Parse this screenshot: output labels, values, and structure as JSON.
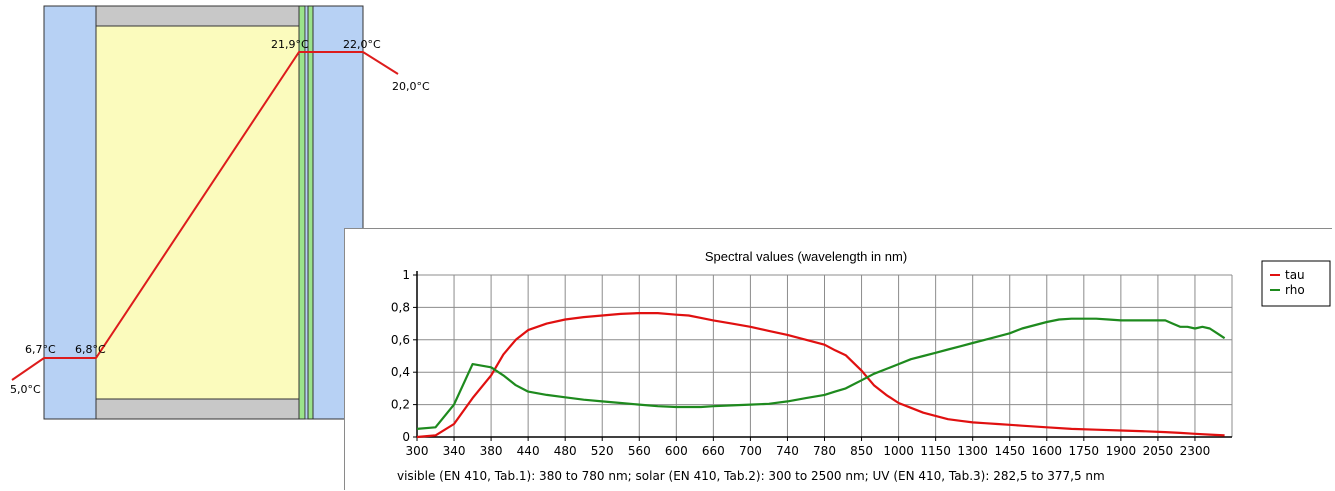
{
  "diagram": {
    "colors": {
      "glass": "#b7d1f4",
      "cavity": "#fbfbbd",
      "spacer": "#c8c8c8",
      "coating": "#9be38b",
      "temperature_line": "#dd1c1c"
    },
    "temperatures": {
      "outside_ambient": "5,0°C",
      "outer_surface_out": "6,7°C",
      "outer_surface_in": "6,8°C",
      "inner_surface_cavity": "21,9°C",
      "inner_surface_room": "22,0°C",
      "inside_ambient": "20,0°C"
    }
  },
  "chart_data": {
    "type": "line",
    "title": "Spectral values  (wavelength in nm)",
    "x_tick_labels": [
      "300",
      "340",
      "380",
      "440",
      "480",
      "520",
      "560",
      "600",
      "660",
      "700",
      "740",
      "780",
      "850",
      "1000",
      "1150",
      "1300",
      "1450",
      "1600",
      "1750",
      "1900",
      "2050",
      "2300"
    ],
    "x_axis_note": "visible (EN 410, Tab.1): 380 to 780 nm;  solar (EN 410, Tab.2): 300 to 2500 nm; UV (EN 410, Tab.3): 282,5 to 377,5 nm",
    "y_tick_labels": [
      "0",
      "0,2",
      "0,4",
      "0,6",
      "0,8",
      "1"
    ],
    "ylim": [
      0,
      1
    ],
    "grid": true,
    "legend_position": "right",
    "series": [
      {
        "name": "tau",
        "color": "#e01010",
        "points": [
          [
            300,
            0.0
          ],
          [
            320,
            0.01
          ],
          [
            340,
            0.08
          ],
          [
            360,
            0.24
          ],
          [
            380,
            0.38
          ],
          [
            400,
            0.51
          ],
          [
            420,
            0.6
          ],
          [
            440,
            0.66
          ],
          [
            460,
            0.7
          ],
          [
            480,
            0.725
          ],
          [
            500,
            0.74
          ],
          [
            520,
            0.75
          ],
          [
            540,
            0.76
          ],
          [
            560,
            0.765
          ],
          [
            580,
            0.765
          ],
          [
            600,
            0.755
          ],
          [
            620,
            0.75
          ],
          [
            640,
            0.735
          ],
          [
            660,
            0.72
          ],
          [
            680,
            0.7
          ],
          [
            700,
            0.68
          ],
          [
            720,
            0.655
          ],
          [
            740,
            0.63
          ],
          [
            760,
            0.6
          ],
          [
            780,
            0.57
          ],
          [
            800,
            0.535
          ],
          [
            820,
            0.505
          ],
          [
            850,
            0.41
          ],
          [
            900,
            0.32
          ],
          [
            950,
            0.26
          ],
          [
            1000,
            0.21
          ],
          [
            1050,
            0.18
          ],
          [
            1100,
            0.15
          ],
          [
            1150,
            0.13
          ],
          [
            1200,
            0.11
          ],
          [
            1250,
            0.1
          ],
          [
            1300,
            0.09
          ],
          [
            1350,
            0.085
          ],
          [
            1400,
            0.08
          ],
          [
            1450,
            0.075
          ],
          [
            1500,
            0.07
          ],
          [
            1600,
            0.06
          ],
          [
            1700,
            0.05
          ],
          [
            1800,
            0.045
          ],
          [
            1900,
            0.04
          ],
          [
            2000,
            0.035
          ],
          [
            2100,
            0.03
          ],
          [
            2200,
            0.025
          ],
          [
            2300,
            0.02
          ],
          [
            2400,
            0.015
          ],
          [
            2500,
            0.01
          ]
        ]
      },
      {
        "name": "rho",
        "color": "#1e8a1e",
        "points": [
          [
            300,
            0.05
          ],
          [
            320,
            0.06
          ],
          [
            340,
            0.2
          ],
          [
            360,
            0.45
          ],
          [
            380,
            0.43
          ],
          [
            400,
            0.38
          ],
          [
            420,
            0.32
          ],
          [
            440,
            0.28
          ],
          [
            460,
            0.26
          ],
          [
            480,
            0.245
          ],
          [
            500,
            0.23
          ],
          [
            520,
            0.22
          ],
          [
            540,
            0.21
          ],
          [
            560,
            0.2
          ],
          [
            580,
            0.19
          ],
          [
            600,
            0.185
          ],
          [
            620,
            0.185
          ],
          [
            640,
            0.185
          ],
          [
            660,
            0.19
          ],
          [
            680,
            0.195
          ],
          [
            700,
            0.2
          ],
          [
            720,
            0.205
          ],
          [
            740,
            0.22
          ],
          [
            760,
            0.24
          ],
          [
            780,
            0.26
          ],
          [
            800,
            0.28
          ],
          [
            820,
            0.3
          ],
          [
            850,
            0.35
          ],
          [
            900,
            0.39
          ],
          [
            950,
            0.42
          ],
          [
            1000,
            0.45
          ],
          [
            1050,
            0.48
          ],
          [
            1100,
            0.5
          ],
          [
            1150,
            0.52
          ],
          [
            1200,
            0.54
          ],
          [
            1250,
            0.56
          ],
          [
            1300,
            0.58
          ],
          [
            1350,
            0.6
          ],
          [
            1400,
            0.62
          ],
          [
            1450,
            0.64
          ],
          [
            1500,
            0.67
          ],
          [
            1600,
            0.71
          ],
          [
            1650,
            0.725
          ],
          [
            1700,
            0.73
          ],
          [
            1750,
            0.73
          ],
          [
            1800,
            0.73
          ],
          [
            1850,
            0.725
          ],
          [
            1900,
            0.72
          ],
          [
            2000,
            0.72
          ],
          [
            2100,
            0.72
          ],
          [
            2150,
            0.7
          ],
          [
            2200,
            0.68
          ],
          [
            2250,
            0.68
          ],
          [
            2300,
            0.67
          ],
          [
            2350,
            0.68
          ],
          [
            2400,
            0.67
          ],
          [
            2450,
            0.64
          ],
          [
            2500,
            0.61
          ]
        ]
      }
    ]
  }
}
